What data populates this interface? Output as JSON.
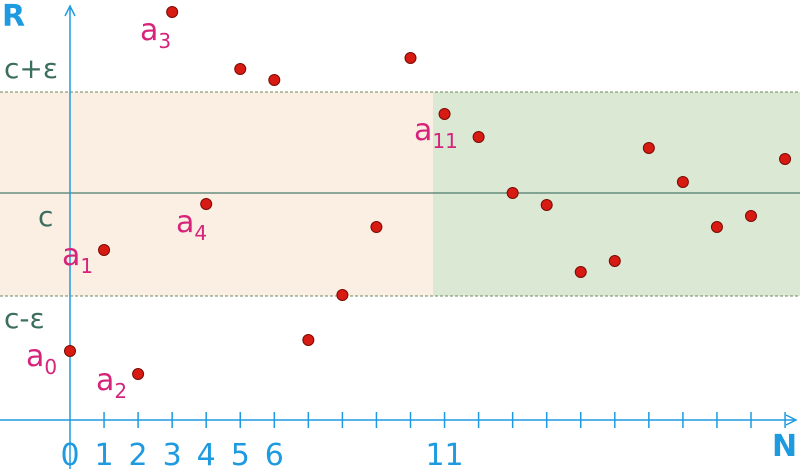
{
  "axes": {
    "y_label": "R",
    "x_label": "N"
  },
  "levels": [
    "c+ε",
    "c",
    "c-ε"
  ],
  "ticks": [
    "0",
    "1",
    "2",
    "3",
    "4",
    "5",
    "6",
    "11"
  ],
  "terms": [
    {
      "base": "a",
      "sub": "0"
    },
    {
      "base": "a",
      "sub": "1"
    },
    {
      "base": "a",
      "sub": "2"
    },
    {
      "base": "a",
      "sub": "3"
    },
    {
      "base": "a",
      "sub": "4"
    },
    {
      "base": "a",
      "sub": "11"
    }
  ]
}
